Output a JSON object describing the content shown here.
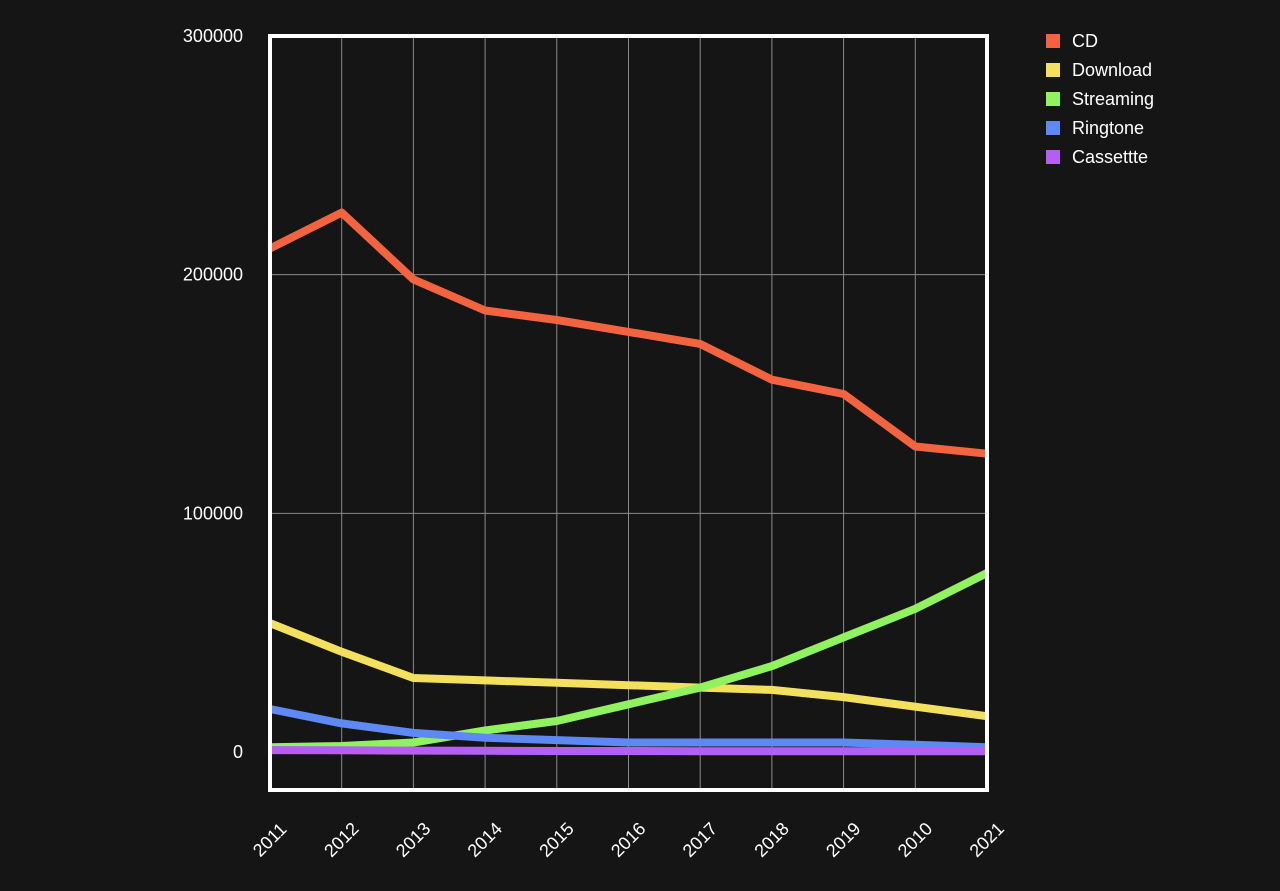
{
  "chart_data": {
    "type": "line",
    "x": [
      "2011",
      "2012",
      "2013",
      "2014",
      "2015",
      "2016",
      "2017",
      "2018",
      "2019",
      "2010",
      "2021"
    ],
    "ylim": [
      0,
      300000
    ],
    "yticks": [
      "0",
      "100000",
      "200000",
      "300000"
    ],
    "grid": true,
    "legend_position": "top-right",
    "series": [
      {
        "name": "CD",
        "color": "#f26440",
        "values": [
          211000,
          226000,
          198000,
          185000,
          181000,
          176000,
          171000,
          156000,
          150000,
          128000,
          125000
        ]
      },
      {
        "name": "Download",
        "color": "#f2e05e",
        "values": [
          54000,
          42000,
          31000,
          30000,
          29000,
          28000,
          27000,
          26000,
          23000,
          19000,
          15000
        ]
      },
      {
        "name": "Streaming",
        "color": "#8ff25e",
        "values": [
          2000,
          2500,
          4000,
          9000,
          13000,
          20000,
          27000,
          36000,
          48000,
          60000,
          75000
        ]
      },
      {
        "name": "Ringtone",
        "color": "#5e88f2",
        "values": [
          18000,
          12000,
          8000,
          6000,
          5000,
          4000,
          4000,
          4000,
          4000,
          3000,
          2000
        ]
      },
      {
        "name": "Cassettte",
        "color": "#b45ef2",
        "values": [
          800,
          700,
          600,
          500,
          400,
          400,
          300,
          300,
          300,
          300,
          300
        ]
      }
    ]
  }
}
